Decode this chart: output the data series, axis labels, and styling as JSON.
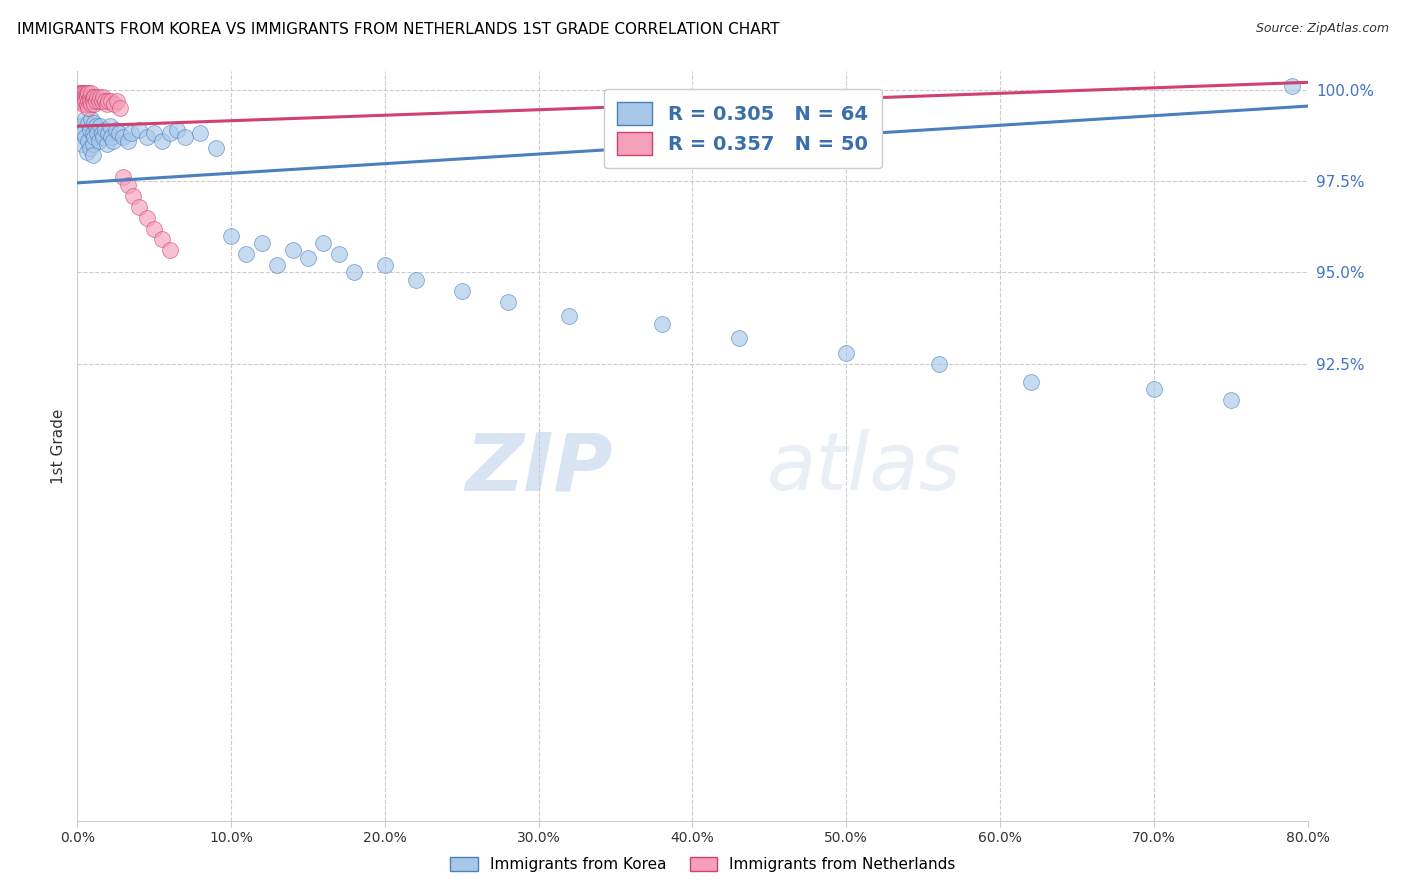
{
  "title": "IMMIGRANTS FROM KOREA VS IMMIGRANTS FROM NETHERLANDS 1ST GRADE CORRELATION CHART",
  "source": "Source: ZipAtlas.com",
  "ylabel": "1st Grade",
  "korea_color": "#a8c8e8",
  "netherlands_color": "#f4a0b8",
  "korea_line_color": "#4a7fc0",
  "netherlands_line_color": "#d04070",
  "xmin": 0.0,
  "xmax": 0.8,
  "ymin": 0.8,
  "ymax": 1.005,
  "gridline_y": [
    1.0,
    0.975,
    0.95,
    0.925
  ],
  "gridline_labels": [
    "100.0%",
    "97.5%",
    "95.0%",
    "92.5%"
  ],
  "x_ticks": [
    0.0,
    0.1,
    0.2,
    0.3,
    0.4,
    0.5,
    0.6,
    0.7,
    0.8
  ],
  "x_tick_labels": [
    "0.0%",
    "10.0%",
    "20.0%",
    "30.0%",
    "40.0%",
    "50.0%",
    "60.0%",
    "70.0%",
    "80.0%"
  ],
  "watermark_zip": "ZIP",
  "watermark_atlas": "atlas",
  "legend_korea_R": "0.305",
  "legend_korea_N": "64",
  "legend_neth_R": "0.357",
  "legend_neth_N": "50",
  "korea_scatter_x": [
    0.002,
    0.003,
    0.004,
    0.005,
    0.005,
    0.006,
    0.007,
    0.007,
    0.008,
    0.008,
    0.009,
    0.01,
    0.01,
    0.01,
    0.011,
    0.011,
    0.012,
    0.013,
    0.014,
    0.015,
    0.016,
    0.017,
    0.018,
    0.019,
    0.02,
    0.021,
    0.022,
    0.023,
    0.025,
    0.027,
    0.03,
    0.033,
    0.035,
    0.04,
    0.045,
    0.05,
    0.055,
    0.06,
    0.065,
    0.07,
    0.08,
    0.09,
    0.1,
    0.11,
    0.12,
    0.13,
    0.14,
    0.15,
    0.16,
    0.17,
    0.18,
    0.2,
    0.22,
    0.25,
    0.28,
    0.32,
    0.38,
    0.43,
    0.5,
    0.56,
    0.62,
    0.7,
    0.75,
    0.79
  ],
  "korea_scatter_y": [
    0.99,
    0.985,
    0.988,
    0.992,
    0.987,
    0.983,
    0.991,
    0.986,
    0.989,
    0.984,
    0.992,
    0.988,
    0.985,
    0.982,
    0.991,
    0.987,
    0.99,
    0.988,
    0.986,
    0.99,
    0.988,
    0.987,
    0.989,
    0.985,
    0.988,
    0.99,
    0.987,
    0.986,
    0.989,
    0.988,
    0.987,
    0.986,
    0.988,
    0.989,
    0.987,
    0.988,
    0.986,
    0.988,
    0.989,
    0.987,
    0.988,
    0.984,
    0.96,
    0.955,
    0.958,
    0.952,
    0.956,
    0.954,
    0.958,
    0.955,
    0.95,
    0.952,
    0.948,
    0.945,
    0.942,
    0.938,
    0.936,
    0.932,
    0.928,
    0.925,
    0.92,
    0.918,
    0.915,
    1.001
  ],
  "netherlands_scatter_x": [
    0.001,
    0.001,
    0.002,
    0.002,
    0.002,
    0.003,
    0.003,
    0.003,
    0.004,
    0.004,
    0.004,
    0.004,
    0.005,
    0.005,
    0.005,
    0.006,
    0.006,
    0.006,
    0.007,
    0.007,
    0.007,
    0.008,
    0.008,
    0.009,
    0.009,
    0.01,
    0.01,
    0.011,
    0.011,
    0.012,
    0.013,
    0.014,
    0.015,
    0.016,
    0.017,
    0.018,
    0.019,
    0.02,
    0.022,
    0.024,
    0.026,
    0.028,
    0.03,
    0.033,
    0.036,
    0.04,
    0.045,
    0.05,
    0.055,
    0.06
  ],
  "netherlands_scatter_y": [
    0.999,
    0.998,
    0.999,
    0.998,
    0.997,
    0.999,
    0.998,
    0.997,
    0.999,
    0.998,
    0.997,
    0.996,
    0.999,
    0.998,
    0.997,
    0.999,
    0.998,
    0.996,
    0.999,
    0.997,
    0.995,
    0.998,
    0.997,
    0.999,
    0.996,
    0.998,
    0.997,
    0.998,
    0.996,
    0.997,
    0.998,
    0.997,
    0.998,
    0.997,
    0.998,
    0.997,
    0.996,
    0.997,
    0.997,
    0.996,
    0.997,
    0.995,
    0.976,
    0.974,
    0.971,
    0.968,
    0.965,
    0.962,
    0.959,
    0.956
  ],
  "korea_trendline_x0": 0.0,
  "korea_trendline_x1": 0.8,
  "korea_trendline_y0": 0.9745,
  "korea_trendline_y1": 0.9955,
  "neth_trendline_x0": 0.0,
  "neth_trendline_x1": 0.8,
  "neth_trendline_y0": 0.99,
  "neth_trendline_y1": 1.002
}
